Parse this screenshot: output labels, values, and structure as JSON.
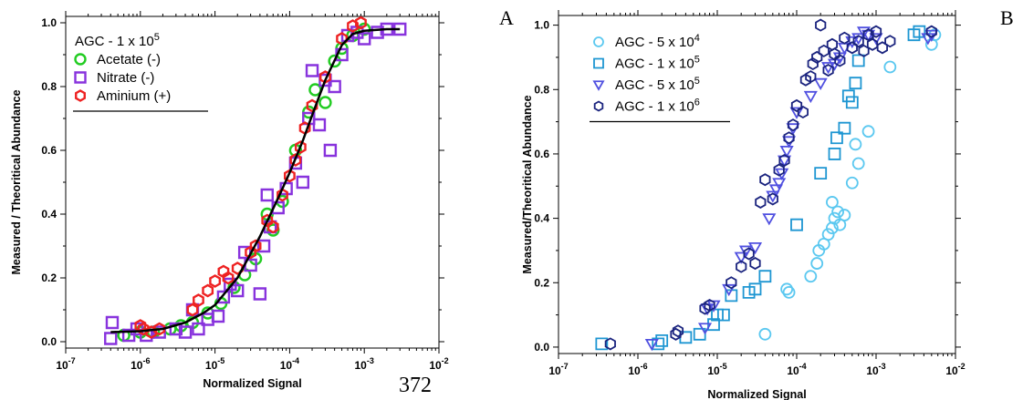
{
  "panel_letters": [
    "A",
    "B"
  ],
  "page_number": "372",
  "chart_data": [
    {
      "type": "scatter",
      "panel": "A",
      "xlabel": "Normalized Signal",
      "ylabel": "Measured / Theoritical Abundance",
      "xscale": "log",
      "xlim": [
        1e-07,
        0.01
      ],
      "ylim": [
        -0.02,
        1.02
      ],
      "x_ticks": [
        "10-7",
        "10-6",
        "10-5",
        "10-4",
        "10-3",
        "10-2"
      ],
      "y_ticks": [
        "0.0",
        "0.2",
        "0.4",
        "0.6",
        "0.8",
        "1.0"
      ],
      "grid": false,
      "legend_position": "top-left",
      "legend_title": "AGC - 1 x 10^5",
      "series": [
        {
          "name": "Acetate (-)",
          "marker": "circle",
          "color": "#22cc22",
          "points": [
            [
              6e-07,
              0.02
            ],
            [
              1e-06,
              0.03
            ],
            [
              1.5e-06,
              0.03
            ],
            [
              2.5e-06,
              0.04
            ],
            [
              3.5e-06,
              0.05
            ],
            [
              5e-06,
              0.06
            ],
            [
              8e-06,
              0.09
            ],
            [
              1.2e-05,
              0.12
            ],
            [
              1.8e-05,
              0.17
            ],
            [
              2.5e-05,
              0.21
            ],
            [
              3.5e-05,
              0.26
            ],
            [
              5e-05,
              0.4
            ],
            [
              6e-05,
              0.35
            ],
            [
              8e-05,
              0.44
            ],
            [
              0.00012,
              0.6
            ],
            [
              0.00018,
              0.72
            ],
            [
              0.00022,
              0.79
            ],
            [
              0.0003,
              0.75
            ],
            [
              0.0004,
              0.88
            ],
            [
              0.0005,
              0.92
            ],
            [
              0.0007,
              0.96
            ],
            [
              0.001,
              0.98
            ]
          ]
        },
        {
          "name": "Nitrate (-)",
          "marker": "square",
          "color": "#8833dd",
          "points": [
            [
              4e-07,
              0.01
            ],
            [
              4.2e-07,
              0.06
            ],
            [
              7e-07,
              0.02
            ],
            [
              9e-07,
              0.04
            ],
            [
              1.2e-06,
              0.02
            ],
            [
              1.8e-06,
              0.03
            ],
            [
              3e-06,
              0.04
            ],
            [
              4e-06,
              0.03
            ],
            [
              5e-06,
              0.1
            ],
            [
              6e-06,
              0.04
            ],
            [
              8e-06,
              0.07
            ],
            [
              1.1e-05,
              0.08
            ],
            [
              1.3e-05,
              0.14
            ],
            [
              1.6e-05,
              0.18
            ],
            [
              2e-05,
              0.16
            ],
            [
              2.5e-05,
              0.28
            ],
            [
              3e-05,
              0.24
            ],
            [
              4e-05,
              0.15
            ],
            [
              4.5e-05,
              0.3
            ],
            [
              5e-05,
              0.46
            ],
            [
              5.5e-05,
              0.36
            ],
            [
              7e-05,
              0.42
            ],
            [
              9e-05,
              0.48
            ],
            [
              0.00012,
              0.56
            ],
            [
              0.00015,
              0.5
            ],
            [
              0.00018,
              0.7
            ],
            [
              0.0002,
              0.85
            ],
            [
              0.00025,
              0.68
            ],
            [
              0.0003,
              0.82
            ],
            [
              0.00035,
              0.6
            ],
            [
              0.0004,
              0.8
            ],
            [
              0.0005,
              0.9
            ],
            [
              0.0006,
              0.96
            ],
            [
              0.0008,
              0.97
            ],
            [
              0.001,
              0.95
            ],
            [
              0.0015,
              0.97
            ],
            [
              0.002,
              0.98
            ],
            [
              0.003,
              0.98
            ]
          ]
        },
        {
          "name": "Aminium (+)",
          "marker": "hexagon",
          "color": "#ee2222",
          "points": [
            [
              1e-06,
              0.05
            ],
            [
              1.1e-06,
              0.04
            ],
            [
              1.4e-06,
              0.03
            ],
            [
              1.8e-06,
              0.04
            ],
            [
              5e-06,
              0.1
            ],
            [
              6e-06,
              0.13
            ],
            [
              8e-06,
              0.16
            ],
            [
              1e-05,
              0.19
            ],
            [
              1.3e-05,
              0.22
            ],
            [
              1.5e-05,
              0.2
            ],
            [
              2e-05,
              0.23
            ],
            [
              3e-05,
              0.28
            ],
            [
              3.5e-05,
              0.3
            ],
            [
              5e-05,
              0.38
            ],
            [
              6e-05,
              0.36
            ],
            [
              8e-05,
              0.46
            ],
            [
              0.0001,
              0.52
            ],
            [
              0.00012,
              0.57
            ],
            [
              0.00014,
              0.61
            ],
            [
              0.00016,
              0.67
            ],
            [
              0.0002,
              0.74
            ],
            [
              0.0003,
              0.83
            ],
            [
              0.0005,
              0.95
            ],
            [
              0.0007,
              0.99
            ],
            [
              0.0009,
              1.0
            ]
          ]
        }
      ],
      "fit": {
        "name": "fit",
        "color": "#000000",
        "points": [
          [
            4e-07,
            0.03
          ],
          [
            1e-06,
            0.033
          ],
          [
            2e-06,
            0.04
          ],
          [
            4e-06,
            0.06
          ],
          [
            7e-06,
            0.09
          ],
          [
            1e-05,
            0.115
          ],
          [
            2e-05,
            0.2
          ],
          [
            4e-05,
            0.33
          ],
          [
            7e-05,
            0.45
          ],
          [
            0.0001,
            0.53
          ],
          [
            0.00015,
            0.63
          ],
          [
            0.0002,
            0.71
          ],
          [
            0.0003,
            0.82
          ],
          [
            0.0005,
            0.93
          ],
          [
            0.0007,
            0.965
          ],
          [
            0.001,
            0.975
          ],
          [
            0.002,
            0.98
          ],
          [
            0.003,
            0.98
          ]
        ]
      }
    },
    {
      "type": "scatter",
      "panel": "B",
      "xlabel": "Normalized Signal",
      "ylabel": "Measured/Theoritical Abundance",
      "xscale": "log",
      "xlim": [
        1e-07,
        0.01
      ],
      "ylim": [
        -0.02,
        1.03
      ],
      "x_ticks": [
        "10-7",
        "10-6",
        "10-5",
        "10-4",
        "10-3",
        "10-2"
      ],
      "y_ticks": [
        "0.0",
        "0.2",
        "0.4",
        "0.6",
        "0.8",
        "1.0"
      ],
      "grid": false,
      "legend_position": "top-left",
      "series": [
        {
          "name": "AGC - 5 x 10^4",
          "marker": "circle",
          "color": "#5bc8f0",
          "points": [
            [
              4e-05,
              0.04
            ],
            [
              7.5e-05,
              0.18
            ],
            [
              8e-05,
              0.17
            ],
            [
              0.00015,
              0.22
            ],
            [
              0.00018,
              0.26
            ],
            [
              0.00019,
              0.3
            ],
            [
              0.00022,
              0.32
            ],
            [
              0.00025,
              0.35
            ],
            [
              0.00028,
              0.37
            ],
            [
              0.0003,
              0.4
            ],
            [
              0.00033,
              0.42
            ],
            [
              0.00035,
              0.38
            ],
            [
              0.00028,
              0.45
            ],
            [
              0.0004,
              0.41
            ],
            [
              0.0005,
              0.51
            ],
            [
              0.0006,
              0.57
            ],
            [
              0.00055,
              0.63
            ],
            [
              0.0008,
              0.67
            ],
            [
              0.0015,
              0.87
            ],
            [
              0.005,
              0.94
            ],
            [
              0.0055,
              0.97
            ]
          ]
        },
        {
          "name": "AGC - 1 x 10^5",
          "marker": "square",
          "color": "#1e96d2",
          "points": [
            [
              3.5e-07,
              0.01
            ],
            [
              1.8e-06,
              0.01
            ],
            [
              2e-06,
              0.02
            ],
            [
              4e-06,
              0.03
            ],
            [
              6e-06,
              0.04
            ],
            [
              9e-06,
              0.07
            ],
            [
              1e-05,
              0.1
            ],
            [
              1.2e-05,
              0.1
            ],
            [
              1.5e-05,
              0.16
            ],
            [
              2.5e-05,
              0.17
            ],
            [
              3e-05,
              0.18
            ],
            [
              4e-05,
              0.22
            ],
            [
              0.0001,
              0.38
            ],
            [
              0.0002,
              0.54
            ],
            [
              0.0003,
              0.6
            ],
            [
              0.00032,
              0.65
            ],
            [
              0.0004,
              0.68
            ],
            [
              0.00045,
              0.78
            ],
            [
              0.0005,
              0.76
            ],
            [
              0.00055,
              0.82
            ],
            [
              0.0006,
              0.89
            ],
            [
              0.003,
              0.97
            ],
            [
              0.0035,
              0.98
            ]
          ]
        },
        {
          "name": "AGC - 5 x 10^5",
          "marker": "triangle-down",
          "color": "#5050e0",
          "points": [
            [
              1.5e-06,
              0.01
            ],
            [
              7e-06,
              0.06
            ],
            [
              7.5e-06,
              0.12
            ],
            [
              9e-06,
              0.13
            ],
            [
              1.4e-05,
              0.18
            ],
            [
              2e-05,
              0.28
            ],
            [
              2.3e-05,
              0.3
            ],
            [
              3e-05,
              0.31
            ],
            [
              4.5e-05,
              0.4
            ],
            [
              5e-05,
              0.47
            ],
            [
              5.5e-05,
              0.49
            ],
            [
              6e-05,
              0.51
            ],
            [
              6.5e-05,
              0.54
            ],
            [
              7e-05,
              0.58
            ],
            [
              7.5e-05,
              0.61
            ],
            [
              8e-05,
              0.64
            ],
            [
              9e-05,
              0.68
            ],
            [
              0.0001,
              0.73
            ],
            [
              0.00015,
              0.78
            ],
            [
              0.0002,
              0.82
            ],
            [
              0.00025,
              0.87
            ],
            [
              0.0003,
              0.88
            ],
            [
              0.00035,
              0.9
            ],
            [
              0.0004,
              0.93
            ],
            [
              0.0005,
              0.95
            ],
            [
              0.0006,
              0.96
            ],
            [
              0.0007,
              0.98
            ],
            [
              0.0008,
              0.97
            ],
            [
              0.001,
              0.96
            ],
            [
              0.0045,
              0.96
            ],
            [
              0.005,
              0.97
            ]
          ]
        },
        {
          "name": "AGC - 1 x 10^6",
          "marker": "hexagon",
          "color": "#1a237e",
          "points": [
            [
              4.5e-07,
              0.01
            ],
            [
              3e-06,
              0.04
            ],
            [
              3.2e-06,
              0.05
            ],
            [
              7e-06,
              0.12
            ],
            [
              8e-06,
              0.13
            ],
            [
              1.5e-05,
              0.2
            ],
            [
              2e-05,
              0.25
            ],
            [
              2.5e-05,
              0.29
            ],
            [
              3e-05,
              0.26
            ],
            [
              3.5e-05,
              0.45
            ],
            [
              4e-05,
              0.52
            ],
            [
              5e-05,
              0.46
            ],
            [
              6e-05,
              0.55
            ],
            [
              7e-05,
              0.58
            ],
            [
              8e-05,
              0.65
            ],
            [
              9e-05,
              0.69
            ],
            [
              0.0001,
              0.75
            ],
            [
              0.00012,
              0.73
            ],
            [
              0.00013,
              0.83
            ],
            [
              0.00015,
              0.84
            ],
            [
              0.00016,
              0.88
            ],
            [
              0.00018,
              0.9
            ],
            [
              0.0002,
              1.0
            ],
            [
              0.00022,
              0.92
            ],
            [
              0.00025,
              0.86
            ],
            [
              0.00028,
              0.94
            ],
            [
              0.0003,
              0.91
            ],
            [
              0.00035,
              0.89
            ],
            [
              0.0004,
              0.96
            ],
            [
              0.0005,
              0.93
            ],
            [
              0.0006,
              0.95
            ],
            [
              0.0007,
              0.92
            ],
            [
              0.0008,
              0.97
            ],
            [
              0.0009,
              0.94
            ],
            [
              0.001,
              0.98
            ],
            [
              0.0012,
              0.93
            ],
            [
              0.0015,
              0.95
            ],
            [
              0.005,
              0.98
            ]
          ]
        }
      ]
    }
  ]
}
